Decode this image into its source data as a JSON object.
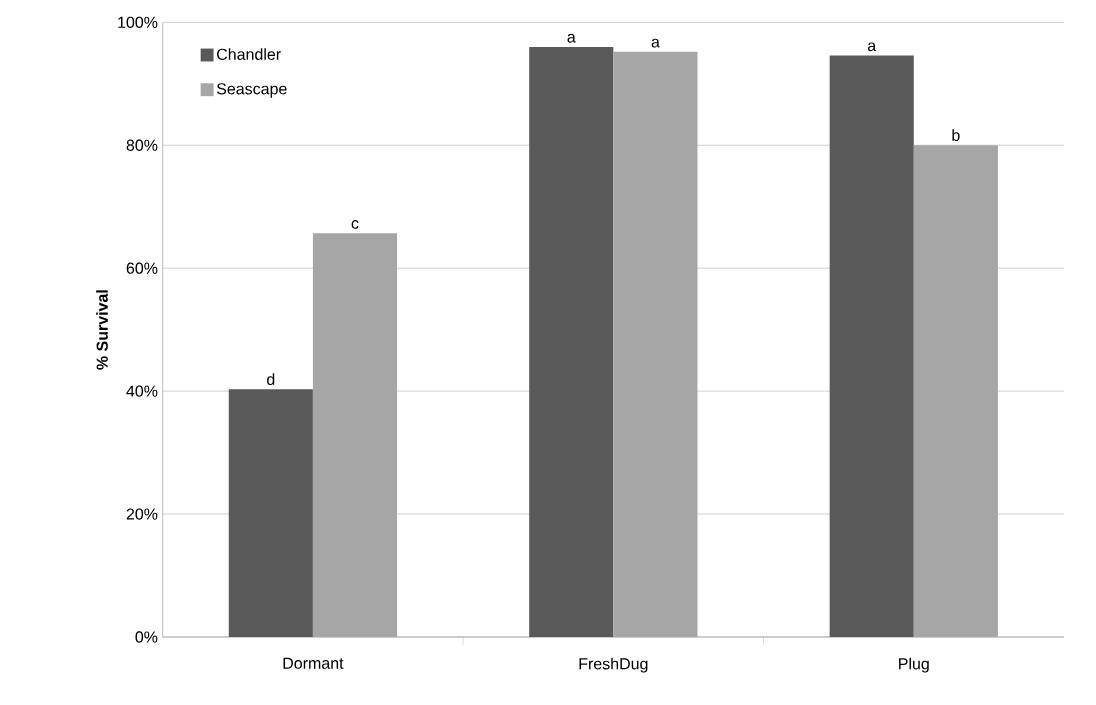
{
  "chart_data": {
    "type": "bar",
    "ylabel": "% Survival",
    "categories": [
      "Dormant",
      "FreshDug",
      "Plug"
    ],
    "series": [
      {
        "name": "Chandler",
        "color": "#595959",
        "values": [
          40.3,
          96,
          94.6
        ]
      },
      {
        "name": "Seascape",
        "color": "#a6a6a6",
        "values": [
          65.7,
          95.2,
          80
        ]
      }
    ],
    "ylim": [
      0,
      100
    ],
    "yticks": [
      {
        "value": 0,
        "label": "0%"
      },
      {
        "value": 20,
        "label": "20%"
      },
      {
        "value": 40,
        "label": "40%"
      },
      {
        "value": 60,
        "label": "60%"
      },
      {
        "value": 80,
        "label": "80%"
      },
      {
        "value": 100,
        "label": "100%"
      }
    ],
    "grid": "y",
    "legend": "top left",
    "annotations": [
      {
        "text": "d",
        "x": "Dormant",
        "y": 40.3
      },
      {
        "text": "c",
        "x": "Dormant",
        "y": 65.7
      },
      {
        "text": "a",
        "x": "FreshDug",
        "y": 96
      },
      {
        "text": "a",
        "x": "FreshDug",
        "y": 95.2
      },
      {
        "text": "a",
        "x": "Plug",
        "y": 94.6
      },
      {
        "text": "b",
        "x": "Plug",
        "y": 80
      }
    ]
  }
}
